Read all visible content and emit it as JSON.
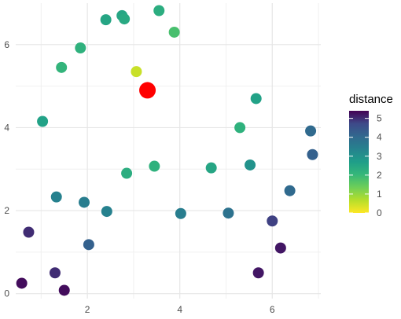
{
  "chart_data": {
    "type": "scatter",
    "title": "",
    "xlabel": "",
    "ylabel": "",
    "xlim": [
      0.45,
      7.05
    ],
    "ylim": [
      -0.12,
      7.0
    ],
    "x_ticks": [
      2,
      4,
      6
    ],
    "y_ticks": [
      0,
      2,
      4,
      6
    ],
    "grid": true,
    "legend": {
      "title": "distance",
      "placement": "right",
      "type": "colorbar",
      "scale": "viridis-reversed",
      "range": [
        0,
        5.4
      ],
      "ticks": [
        0,
        1,
        2,
        3,
        4,
        5
      ]
    },
    "highlight_point": {
      "x": 3.3,
      "y": 4.9,
      "color": "#ff0000"
    },
    "points": [
      {
        "x": 0.58,
        "y": 0.25,
        "distance": 5.3
      },
      {
        "x": 0.73,
        "y": 1.48,
        "distance": 5.0
      },
      {
        "x": 1.03,
        "y": 4.15,
        "distance": 2.6
      },
      {
        "x": 1.3,
        "y": 0.5,
        "distance": 5.0
      },
      {
        "x": 1.33,
        "y": 2.33,
        "distance": 3.4
      },
      {
        "x": 1.44,
        "y": 5.45,
        "distance": 2.1
      },
      {
        "x": 1.5,
        "y": 0.08,
        "distance": 5.3
      },
      {
        "x": 1.85,
        "y": 5.92,
        "distance": 2.2
      },
      {
        "x": 1.93,
        "y": 2.2,
        "distance": 3.5
      },
      {
        "x": 2.03,
        "y": 1.18,
        "distance": 4.2
      },
      {
        "x": 2.4,
        "y": 6.6,
        "distance": 2.5
      },
      {
        "x": 2.42,
        "y": 1.98,
        "distance": 3.4
      },
      {
        "x": 2.75,
        "y": 6.7,
        "distance": 2.5
      },
      {
        "x": 2.8,
        "y": 6.62,
        "distance": 2.4
      },
      {
        "x": 2.85,
        "y": 2.9,
        "distance": 2.3
      },
      {
        "x": 3.06,
        "y": 5.35,
        "distance": 0.5
      },
      {
        "x": 3.45,
        "y": 3.07,
        "distance": 2.2
      },
      {
        "x": 3.55,
        "y": 6.82,
        "distance": 2.3
      },
      {
        "x": 3.88,
        "y": 6.3,
        "distance": 1.8
      },
      {
        "x": 4.02,
        "y": 1.93,
        "distance": 3.5
      },
      {
        "x": 4.68,
        "y": 3.03,
        "distance": 2.5
      },
      {
        "x": 5.05,
        "y": 1.94,
        "distance": 3.8
      },
      {
        "x": 5.3,
        "y": 4.0,
        "distance": 2.2
      },
      {
        "x": 5.52,
        "y": 3.1,
        "distance": 3.0
      },
      {
        "x": 5.65,
        "y": 4.7,
        "distance": 2.6
      },
      {
        "x": 5.7,
        "y": 0.5,
        "distance": 5.2
      },
      {
        "x": 6.0,
        "y": 1.75,
        "distance": 4.8
      },
      {
        "x": 6.18,
        "y": 1.1,
        "distance": 5.2
      },
      {
        "x": 6.38,
        "y": 2.48,
        "distance": 4.0
      },
      {
        "x": 6.83,
        "y": 3.92,
        "distance": 4.0
      },
      {
        "x": 6.87,
        "y": 3.35,
        "distance": 4.2
      }
    ]
  }
}
